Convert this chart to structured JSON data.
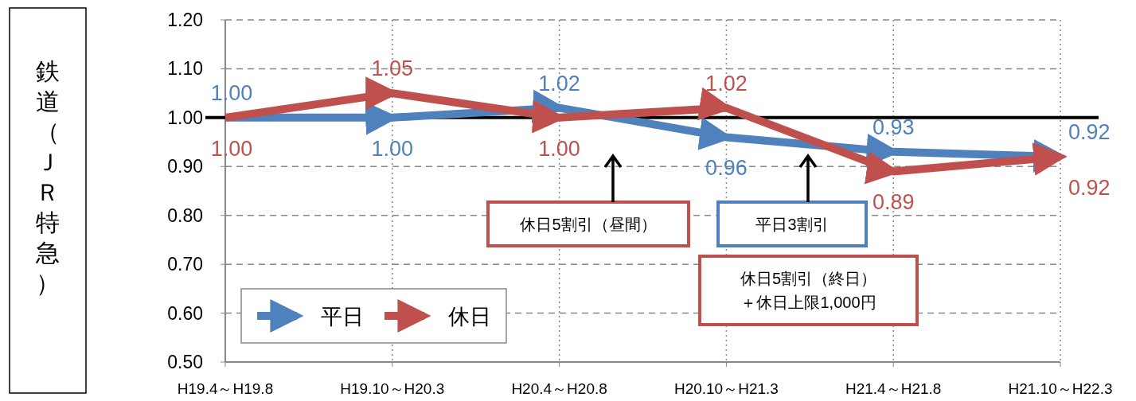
{
  "chart_data": {
    "type": "line",
    "ylabel": "鉄道（ＪＲ特急）",
    "categories": [
      "H19.4～H19.8",
      "H19.10～H20.3",
      "H20.4～H20.8",
      "H20.10～H21.3",
      "H21.4～H21.8",
      "H21.10～H22.3"
    ],
    "series": [
      {
        "name": "平日",
        "color": "#4f81bd",
        "values": [
          1.0,
          1.0,
          1.02,
          0.96,
          0.93,
          0.92
        ],
        "value_labels": [
          "1.00",
          "1.00",
          "1.02",
          "0.96",
          "0.93",
          "0.92"
        ]
      },
      {
        "name": "休日",
        "color": "#c0504d",
        "values": [
          1.0,
          1.05,
          1.0,
          1.02,
          0.89,
          0.92
        ],
        "value_labels": [
          "1.00",
          "1.05",
          "1.00",
          "1.02",
          "0.89",
          "0.92"
        ]
      }
    ],
    "ylim": [
      0.5,
      1.2
    ],
    "yticks": [
      {
        "value": 0.5,
        "label": "0.50"
      },
      {
        "value": 0.6,
        "label": "0.60"
      },
      {
        "value": 0.7,
        "label": "0.70"
      },
      {
        "value": 0.8,
        "label": "0.80"
      },
      {
        "value": 0.9,
        "label": "0.90"
      },
      {
        "value": 1.0,
        "label": "1.00"
      },
      {
        "value": 1.1,
        "label": "1.10"
      },
      {
        "value": 1.2,
        "label": "1.20"
      }
    ],
    "ref_lines": [
      {
        "axis": "y",
        "value": 1.0,
        "color": "#000000"
      }
    ],
    "annotations": [
      "休日5割引（昼間）",
      "平日3割引",
      "休日5割引（終日）＋休日上限1,000円"
    ],
    "grid": true,
    "legend": "bottom left"
  }
}
